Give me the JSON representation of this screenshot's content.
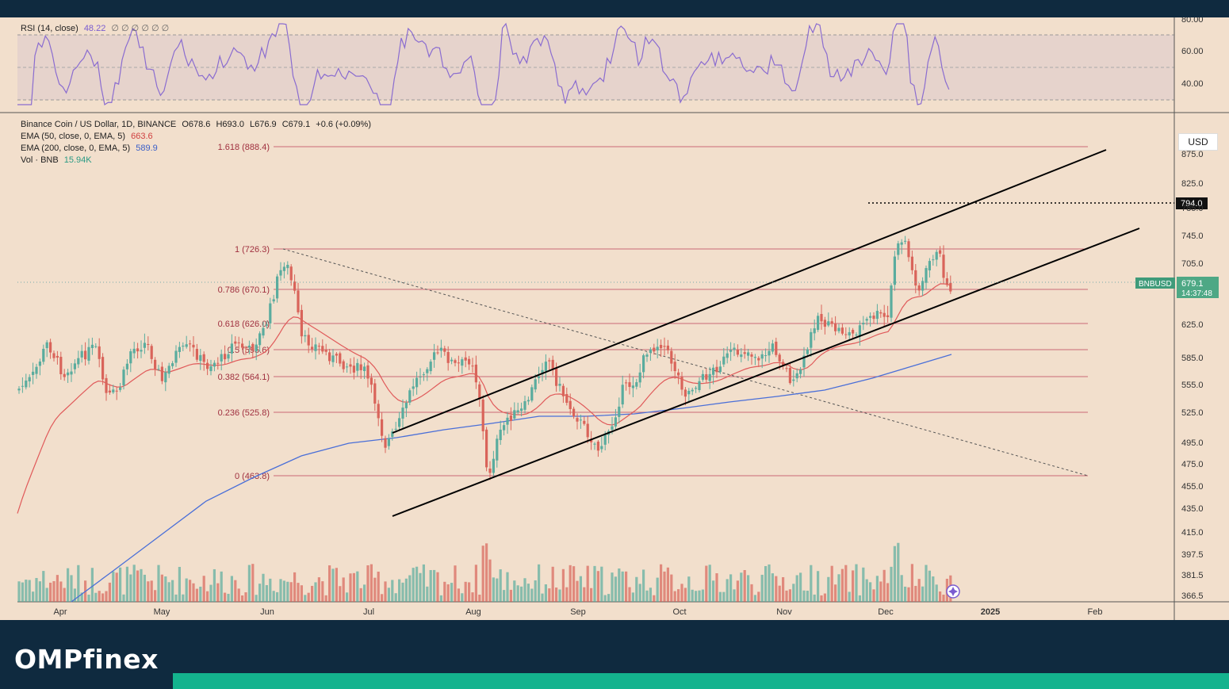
{
  "logo": "OMPfinex",
  "header": {
    "symbol": "Binance Coin / US Dollar, 1D, BINANCE",
    "open": "O678.6",
    "high": "H693.0",
    "low": "L676.9",
    "close": "C679.1",
    "change": "+0.6 (+0.09%)",
    "ema50_label": "EMA (50, close, 0, EMA, 5)",
    "ema50_value": "663.6",
    "ema200_label": "EMA (200, close, 0, EMA, 5)",
    "ema200_value": "589.9",
    "vol_label": "Vol · BNB",
    "vol_value": "15.94K"
  },
  "rsi": {
    "label": "RSI (14, close)",
    "value": "48.22",
    "symbols": "∅ ∅ ∅ ∅ ∅ ∅",
    "ticks": [
      "80.00",
      "60.00",
      "40.00"
    ]
  },
  "currency_button": "USD",
  "price_label": {
    "symbol": "BNBUSD",
    "price": "679.1",
    "countdown": "14:37:48"
  },
  "resistance_label": "794.0",
  "colors": {
    "background": "#f2dfcc",
    "up": "#5aac9e",
    "down": "#d9645a",
    "ema50": "#e05a5a",
    "ema200": "#4a6fd8",
    "fib": "#c96a76",
    "rsi": "#8a6cd0",
    "footer": "#0f2a3f",
    "accent": "#14b38e"
  },
  "chart_data": {
    "type": "candlestick",
    "title": "Binance Coin / US Dollar, 1D, BINANCE",
    "y_ticks": [
      "875.0",
      "825.0",
      "785.0",
      "745.0",
      "705.0",
      "625.0",
      "585.0",
      "555.0",
      "525.0",
      "495.0",
      "475.0",
      "455.0",
      "435.0",
      "415.0",
      "397.5",
      "381.5",
      "366.5"
    ],
    "x_labels": [
      "Apr",
      "May",
      "Jun",
      "Jul",
      "Aug",
      "Sep",
      "Oct",
      "Nov",
      "Dec",
      "2025",
      "Feb"
    ],
    "fib_levels": [
      {
        "label": "1.618 (888.4)",
        "value": 888.4
      },
      {
        "label": "1 (726.3)",
        "value": 726.3
      },
      {
        "label": "0.786 (670.1)",
        "value": 670.1
      },
      {
        "label": "0.618 (626.0)",
        "value": 626.0
      },
      {
        "label": "0.5 (595.6)",
        "value": 595.6
      },
      {
        "label": "0.382 (564.1)",
        "value": 564.1
      },
      {
        "label": "0.236 (525.8)",
        "value": 525.8
      },
      {
        "label": "0 (463.8)",
        "value": 463.8
      }
    ],
    "last_close": 679.1,
    "resistance": 794.0,
    "ema50_last": 663.6,
    "ema200_last": 589.9,
    "volume_last": "15.94K",
    "rsi_last": 48.22
  }
}
